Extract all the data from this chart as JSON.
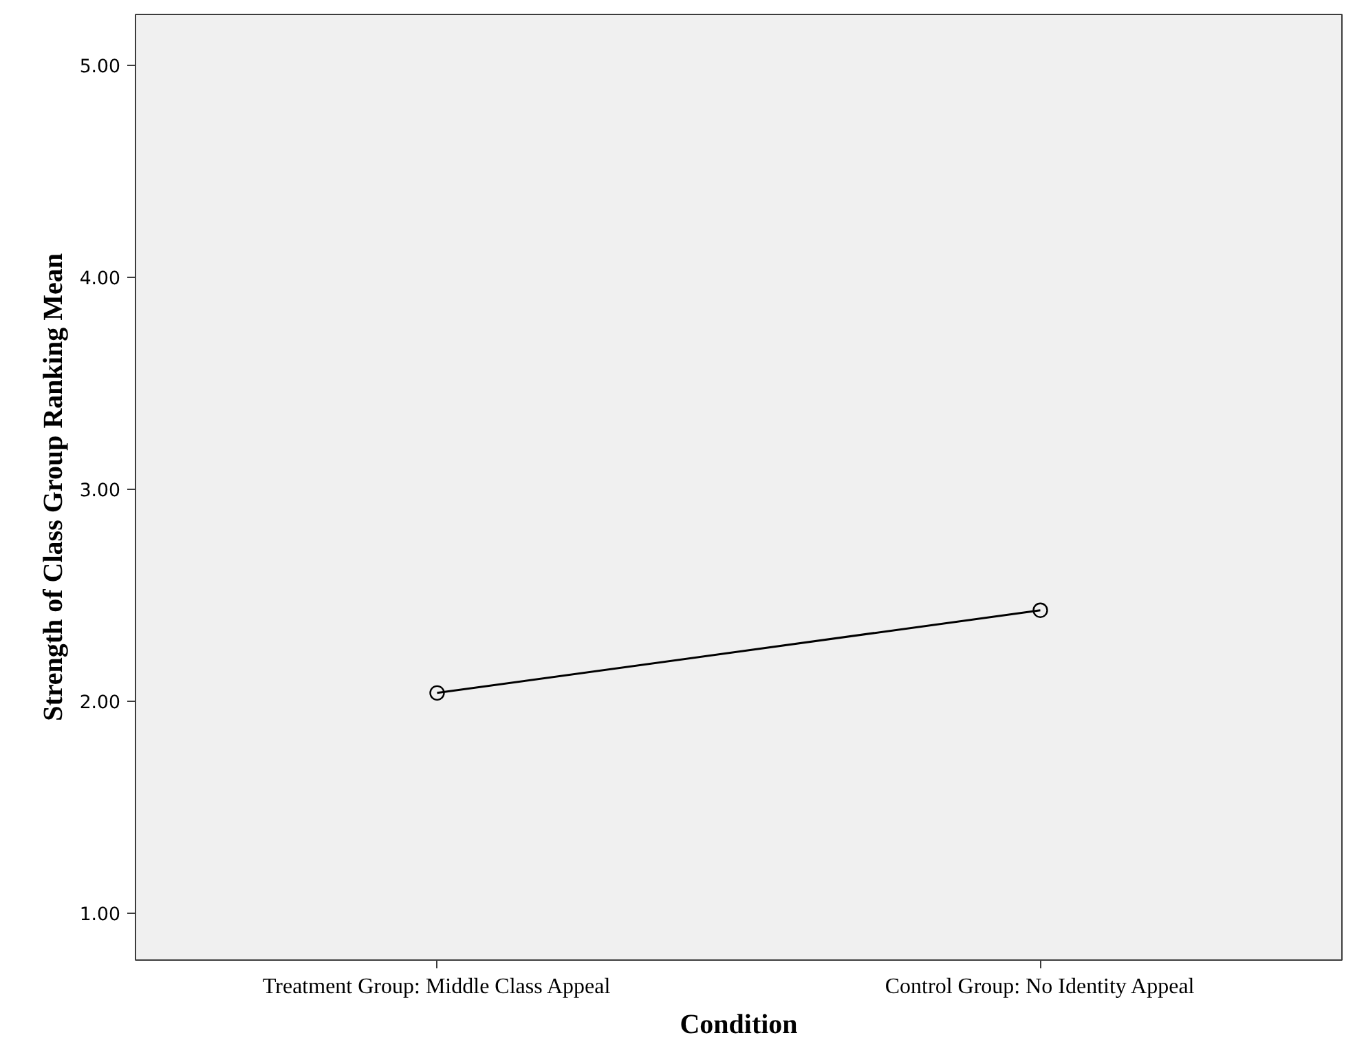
{
  "chart_data": {
    "type": "line",
    "xlabel": "Condition",
    "ylabel": "Strength of Class Group Ranking Mean",
    "categories": [
      "Treatment Group: Middle Class Appeal",
      "Control Group: No Identity Appeal"
    ],
    "series": [
      {
        "color": "#000000",
        "values": [
          2.04,
          2.43
        ]
      }
    ],
    "ylim": [
      0.78,
      5.24
    ],
    "yticks": [
      {
        "value": 1,
        "label": "1.00"
      },
      {
        "value": 2,
        "label": "2.00"
      },
      {
        "value": 3,
        "label": "3.00"
      },
      {
        "value": 4,
        "label": "4.00"
      },
      {
        "value": 5,
        "label": "5.00"
      }
    ],
    "marker": "circle",
    "line_style": "solid",
    "grid": false,
    "legend": false
  }
}
